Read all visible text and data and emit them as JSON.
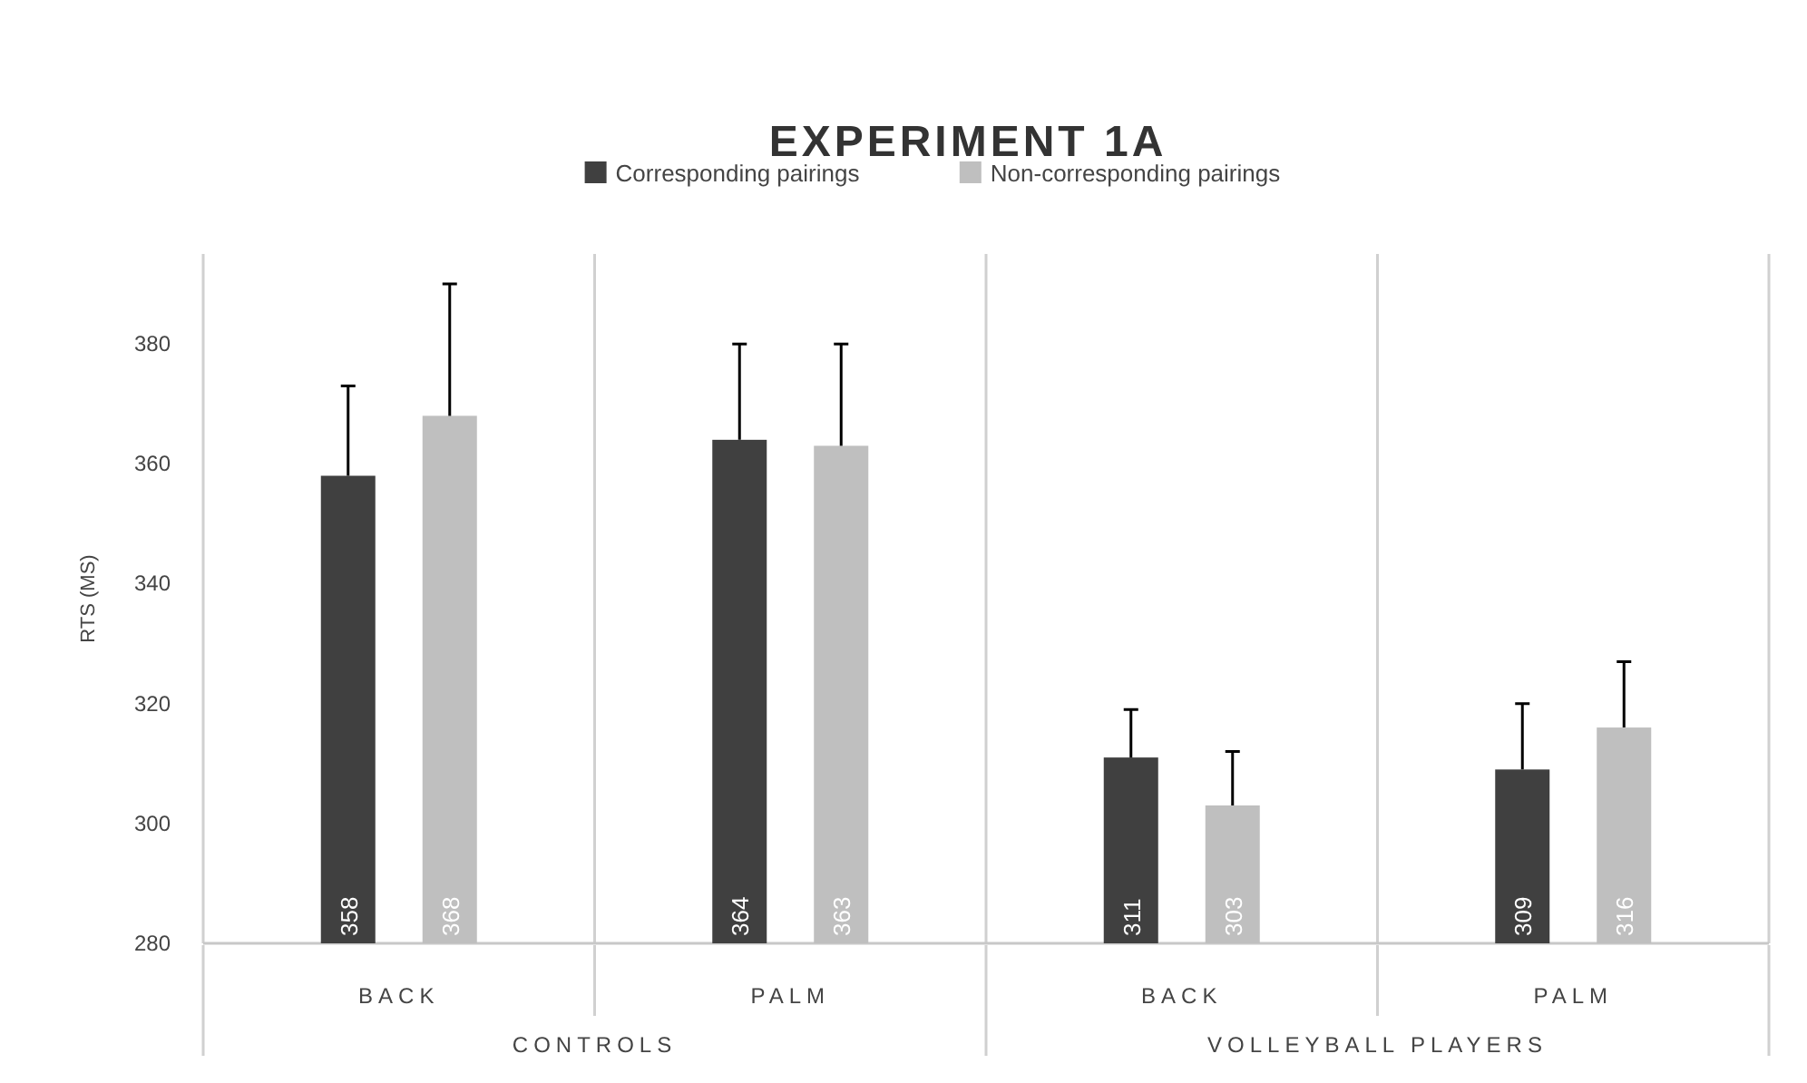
{
  "chart_data": {
    "type": "bar",
    "title": "EXPERIMENT  1A",
    "ylabel": "RTS (MS)",
    "categories": [
      "BACK",
      "PALM",
      "BACK",
      "PALM"
    ],
    "annotations": [
      "CONTROLS",
      "VOLLEYBALL PLAYERS"
    ],
    "series": [
      {
        "name": "Corresponding pairings",
        "color": "#404040",
        "values": [
          358,
          364,
          311,
          309
        ],
        "errors": [
          [
            358,
            373
          ],
          [
            364,
            380
          ],
          [
            311,
            319
          ],
          [
            309,
            320
          ]
        ]
      },
      {
        "name": "Non-corresponding pairings",
        "color": "#bfbfbf",
        "values": [
          368,
          363,
          303,
          316
        ],
        "errors": [
          [
            368,
            390
          ],
          [
            363,
            380
          ],
          [
            303,
            312
          ],
          [
            316,
            327
          ]
        ]
      }
    ],
    "ylim": [
      280,
      395
    ],
    "yticks": [
      280,
      300,
      320,
      340,
      360,
      380
    ],
    "data_labels": true,
    "legend": "top"
  }
}
